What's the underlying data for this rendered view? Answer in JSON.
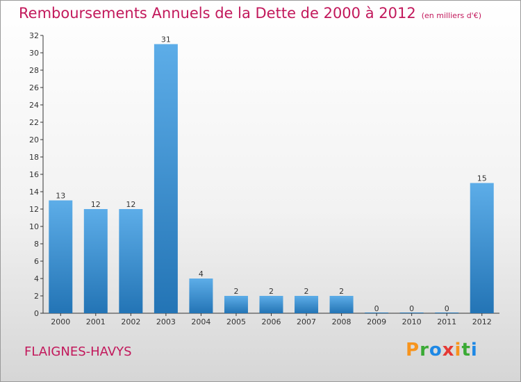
{
  "title": "Remboursements Annuels de la Dette de 2000 à 2012",
  "subtitle": "(en milliers d'€)",
  "commune": "FLAIGNES-HAVYS",
  "logo": {
    "text": "Proxiti",
    "colors": [
      "#f7941d",
      "#3aaa35",
      "#1e88e5",
      "#e53935",
      "#f7941d",
      "#3aaa35",
      "#1e88e5"
    ]
  },
  "colors": {
    "title": "#c2185b",
    "bar_top": "#5dade8",
    "bar_bottom": "#2374b5",
    "axis": "#333333"
  },
  "chart_data": {
    "type": "bar",
    "categories": [
      "2000",
      "2001",
      "2002",
      "2003",
      "2004",
      "2005",
      "2006",
      "2007",
      "2008",
      "2009",
      "2010",
      "2011",
      "2012"
    ],
    "values": [
      13,
      12,
      12,
      31,
      4,
      2,
      2,
      2,
      2,
      0,
      0,
      0,
      15
    ],
    "ylim": [
      0,
      32
    ],
    "yticks": [
      0,
      2,
      4,
      6,
      8,
      10,
      12,
      14,
      16,
      18,
      20,
      22,
      24,
      26,
      28,
      30,
      32
    ],
    "grid": false,
    "data_labels": true
  }
}
